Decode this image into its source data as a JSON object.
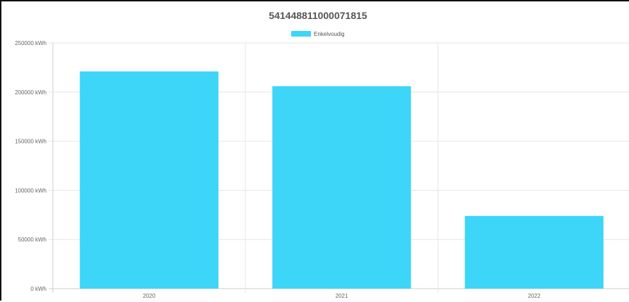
{
  "chart_data": {
    "type": "bar",
    "title": "541448811000071815",
    "categories": [
      "2020",
      "2021",
      "2022"
    ],
    "series": [
      {
        "name": "Enkelvoudig",
        "values": [
          221000,
          206000,
          74000
        ],
        "color": "#3dd5f8"
      }
    ],
    "y_ticks": [
      "0 kWh",
      "50000 kWh",
      "100000 kWh",
      "150000 kWh",
      "200000 kWh",
      "250000 kWh"
    ],
    "y_tick_values": [
      0,
      50000,
      100000,
      150000,
      200000,
      250000
    ],
    "ylim": [
      0,
      250000
    ],
    "y_unit": "kWh",
    "legend_position": "top-center",
    "grid": true
  },
  "colors": {
    "bar": "#3dd5f8",
    "grid": "#e6e6e6",
    "axis": "#cccccc"
  }
}
